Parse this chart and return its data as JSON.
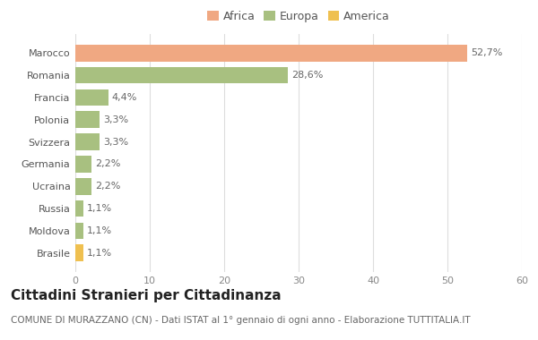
{
  "countries": [
    "Brasile",
    "Moldova",
    "Russia",
    "Ucraina",
    "Germania",
    "Svizzera",
    "Polonia",
    "Francia",
    "Romania",
    "Marocco"
  ],
  "values": [
    1.1,
    1.1,
    1.1,
    2.2,
    2.2,
    3.3,
    3.3,
    4.4,
    28.6,
    52.7
  ],
  "labels": [
    "1,1%",
    "1,1%",
    "1,1%",
    "2,2%",
    "2,2%",
    "3,3%",
    "3,3%",
    "4,4%",
    "28,6%",
    "52,7%"
  ],
  "colors": [
    "#EFC050",
    "#A8C080",
    "#A8C080",
    "#A8C080",
    "#A8C080",
    "#A8C080",
    "#A8C080",
    "#A8C080",
    "#A8C080",
    "#F0A882"
  ],
  "legend_items": [
    {
      "label": "Africa",
      "color": "#F0A882"
    },
    {
      "label": "Europa",
      "color": "#A8C080"
    },
    {
      "label": "America",
      "color": "#EFC050"
    }
  ],
  "title": "Cittadini Stranieri per Cittadinanza",
  "subtitle": "COMUNE DI MURAZZANO (CN) - Dati ISTAT al 1° gennaio di ogni anno - Elaborazione TUTTITALIA.IT",
  "xlim": [
    0,
    60
  ],
  "xticks": [
    0,
    10,
    20,
    30,
    40,
    50,
    60
  ],
  "bg_color": "#FFFFFF",
  "grid_color": "#DDDDDD",
  "bar_height": 0.75,
  "title_fontsize": 11,
  "subtitle_fontsize": 7.5,
  "label_fontsize": 8,
  "tick_fontsize": 8,
  "legend_fontsize": 9
}
